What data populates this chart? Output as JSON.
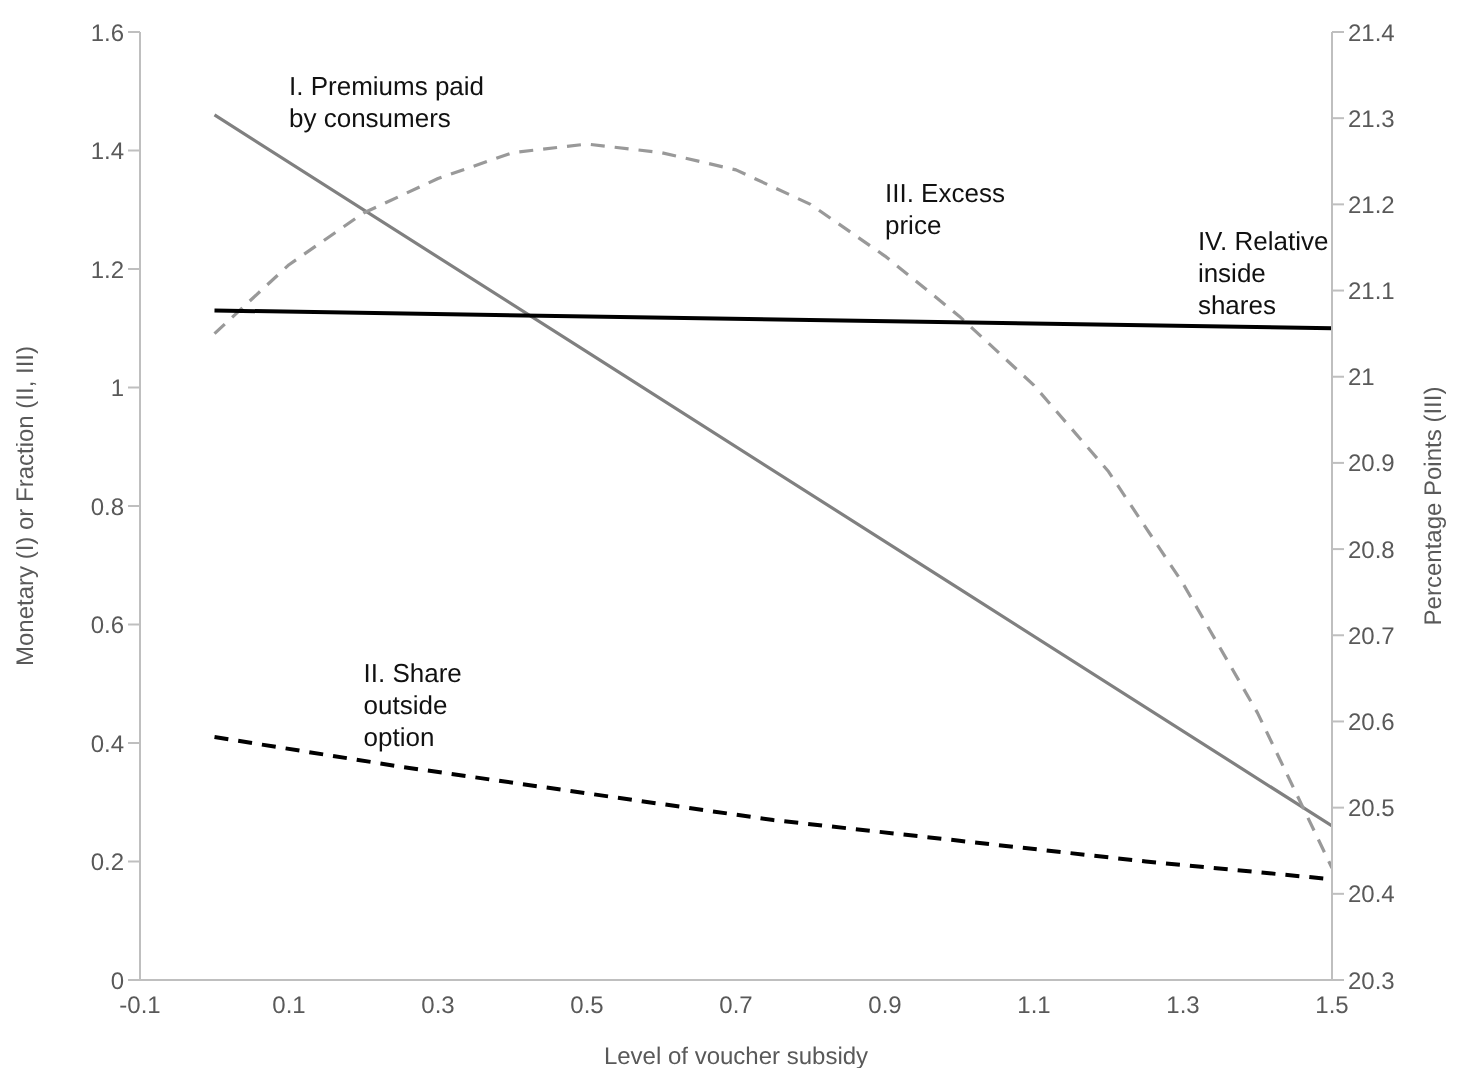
{
  "chart_data": {
    "type": "line",
    "xlabel": "Level of voucher subsidy",
    "ylabel": "Monetary (I) or Fraction (II, III)",
    "y2label": "Percentage Points (III)",
    "xlim": [
      -0.1,
      1.5
    ],
    "xticks": [
      -0.1,
      0.1,
      0.3,
      0.5,
      0.7,
      0.9,
      1.1,
      1.3,
      1.5
    ],
    "ylim": [
      0,
      1.6
    ],
    "yticks": [
      0,
      0.2,
      0.4,
      0.6,
      0.8,
      1,
      1.2,
      1.4,
      1.6
    ],
    "y2lim": [
      20.3,
      21.4
    ],
    "y2ticks": [
      20.3,
      20.4,
      20.5,
      20.6,
      20.7,
      20.8,
      20.9,
      21,
      21.1,
      21.2,
      21.3,
      21.4
    ],
    "grid": false,
    "legend": false,
    "marker": "none",
    "series": [
      {
        "name": "I. Premiums paid by consumers",
        "color": "#808080",
        "line_style": "solid",
        "x": [
          0,
          0.5,
          1,
          1.5
        ],
        "values": [
          1.46,
          1.06,
          0.66,
          0.26
        ]
      },
      {
        "name": "II. Share outside option",
        "color": "#000000",
        "line_style": "dashed",
        "x": [
          0,
          0.25,
          0.5,
          0.75,
          1,
          1.25,
          1.5
        ],
        "values": [
          0.41,
          0.36,
          0.315,
          0.27,
          0.235,
          0.2,
          0.17
        ]
      },
      {
        "name": "III. Excess price",
        "color": "#999999",
        "line_style": "dashed",
        "axis": "y2",
        "x": [
          0,
          0.1,
          0.2,
          0.3,
          0.4,
          0.5,
          0.6,
          0.7,
          0.8,
          0.9,
          1,
          1.1,
          1.2,
          1.3,
          1.4,
          1.5
        ],
        "values": [
          21.05,
          21.13,
          21.19,
          21.23,
          21.26,
          21.27,
          21.26,
          21.24,
          21.2,
          21.14,
          21.07,
          20.99,
          20.89,
          20.76,
          20.61,
          20.43
        ]
      },
      {
        "name": "IV. Relative inside shares",
        "color": "#000000",
        "line_style": "solid",
        "x": [
          0,
          1.5
        ],
        "values": [
          1.13,
          1.1
        ]
      }
    ]
  }
}
